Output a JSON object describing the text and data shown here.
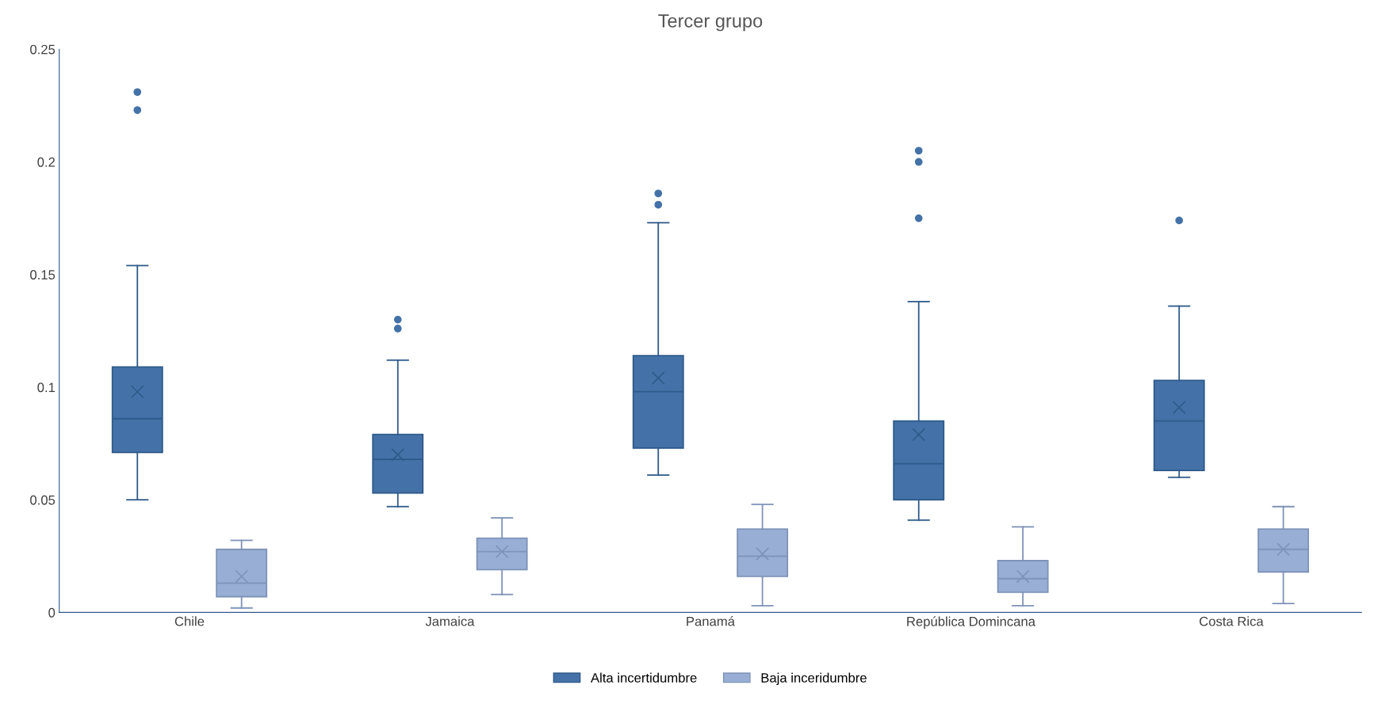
{
  "chart_data": {
    "type": "box",
    "title": "Tercer grupo",
    "categories": [
      "Chile",
      "Jamaica",
      "Panamá",
      "República Domincana",
      "Costa Rica"
    ],
    "series": [
      {
        "name": "Alta incertidumbre",
        "color": "#4472a8",
        "boxes": [
          {
            "low": 0.05,
            "q1": 0.071,
            "median": 0.086,
            "q3": 0.109,
            "high": 0.154,
            "mean": 0.098,
            "outliers": [
              0.231,
              0.223
            ]
          },
          {
            "low": 0.047,
            "q1": 0.053,
            "median": 0.068,
            "q3": 0.079,
            "high": 0.112,
            "mean": 0.07,
            "outliers": [
              0.13,
              0.126
            ]
          },
          {
            "low": 0.061,
            "q1": 0.073,
            "median": 0.098,
            "q3": 0.114,
            "high": 0.173,
            "mean": 0.104,
            "outliers": [
              0.186,
              0.181
            ]
          },
          {
            "low": 0.041,
            "q1": 0.05,
            "median": 0.066,
            "q3": 0.085,
            "high": 0.138,
            "mean": 0.079,
            "outliers": [
              0.205,
              0.2,
              0.175
            ]
          },
          {
            "low": 0.06,
            "q1": 0.063,
            "median": 0.085,
            "q3": 0.103,
            "high": 0.136,
            "mean": 0.091,
            "outliers": [
              0.174
            ]
          }
        ]
      },
      {
        "name": "Baja inceridumbre",
        "color": "#98aed4",
        "boxes": [
          {
            "low": 0.002,
            "q1": 0.007,
            "median": 0.013,
            "q3": 0.028,
            "high": 0.032,
            "mean": 0.016
          },
          {
            "low": 0.008,
            "q1": 0.019,
            "median": 0.027,
            "q3": 0.033,
            "high": 0.042,
            "mean": 0.027
          },
          {
            "low": 0.003,
            "q1": 0.016,
            "median": 0.025,
            "q3": 0.037,
            "high": 0.048,
            "mean": 0.026
          },
          {
            "low": 0.003,
            "q1": 0.009,
            "median": 0.015,
            "q3": 0.023,
            "high": 0.038,
            "mean": 0.016
          },
          {
            "low": 0.004,
            "q1": 0.018,
            "median": 0.028,
            "q3": 0.037,
            "high": 0.047,
            "mean": 0.028
          }
        ]
      }
    ],
    "ylim": [
      0,
      0.25
    ],
    "yticks": [
      0,
      0.05,
      0.1,
      0.15,
      0.2,
      0.25
    ],
    "grid": false,
    "legend": "bottom"
  }
}
